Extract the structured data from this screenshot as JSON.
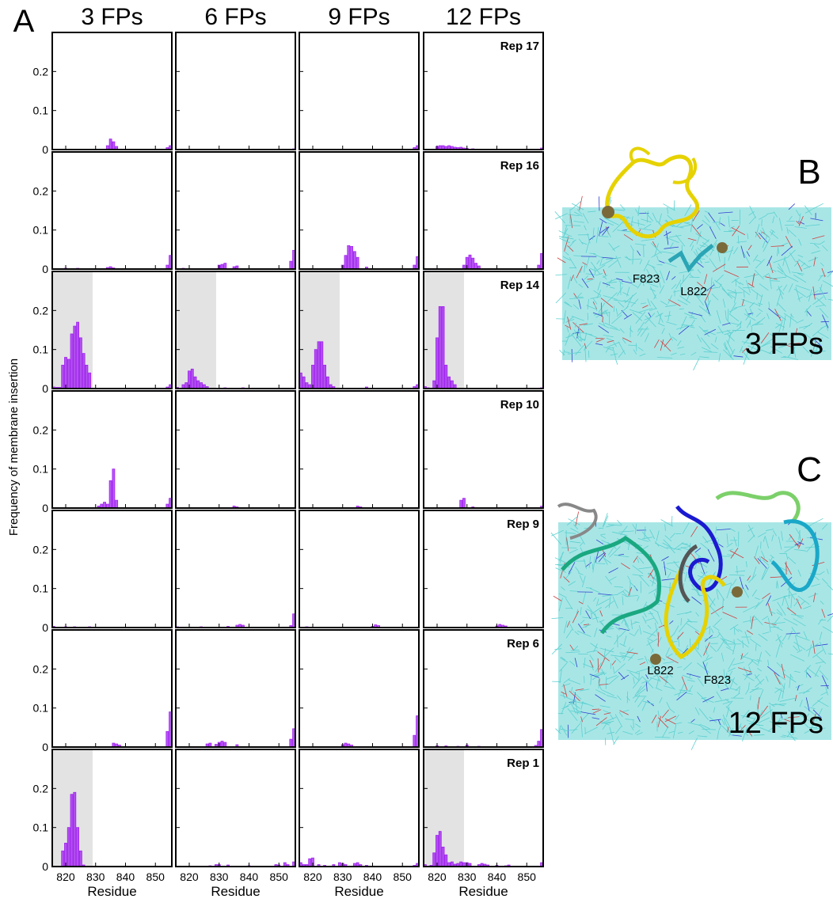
{
  "figure_label": "A",
  "y_label": "Frequency of membrane insertion",
  "chart_data": [
    {
      "type": "bar",
      "title": "3 FPs",
      "x": [
        834,
        835,
        836,
        837,
        854,
        855
      ],
      "values": [
        0.01,
        0.027,
        0.02,
        0.008,
        0.005,
        0.01
      ],
      "xlim": [
        815.5,
        855.5
      ],
      "ylim": [
        0,
        0.3
      ],
      "xticks": [
        820,
        830,
        840,
        850
      ],
      "yticks": [
        0,
        0.1,
        0.2
      ],
      "color": "#a020f0"
    },
    {
      "type": "bar",
      "title": "6 FPs",
      "x": [
        855
      ],
      "values": [
        0.002
      ],
      "xlim": [
        815.5,
        855.5
      ],
      "ylim": [
        0,
        0.3
      ],
      "xticks": [
        820,
        830,
        840,
        850
      ],
      "yticks": [
        0,
        0.1,
        0.2
      ],
      "color": "#a020f0"
    },
    {
      "type": "bar",
      "title": "9 FPs",
      "x": [
        854,
        855
      ],
      "values": [
        0.005,
        0.01
      ],
      "xlim": [
        815.5,
        855.5
      ],
      "ylim": [
        0,
        0.3
      ],
      "xticks": [
        820,
        830,
        840,
        850
      ],
      "yticks": [
        0,
        0.1,
        0.2
      ],
      "color": "#a020f0"
    },
    {
      "type": "bar",
      "title": "12 FPs",
      "annotation": "Rep 17",
      "x": [
        820,
        821,
        822,
        823,
        824,
        825,
        826,
        827,
        828,
        829,
        830,
        832,
        855
      ],
      "values": [
        0.008,
        0.01,
        0.01,
        0.008,
        0.01,
        0.008,
        0.006,
        0.005,
        0.006,
        0.004,
        0.003,
        0.002,
        0.004
      ],
      "xlim": [
        815.5,
        855.5
      ],
      "ylim": [
        0,
        0.3
      ],
      "xticks": [
        820,
        830,
        840,
        850
      ],
      "yticks": [
        0,
        0.1,
        0.2
      ],
      "color": "#a020f0"
    },
    {
      "type": "bar",
      "x": [
        820,
        824,
        834,
        835,
        836,
        854,
        855
      ],
      "values": [
        0.002,
        0.002,
        0.004,
        0.006,
        0.003,
        0.01,
        0.035
      ],
      "xlim": [
        815.5,
        855.5
      ],
      "ylim": [
        0,
        0.3
      ],
      "xticks": [
        820,
        830,
        840,
        850
      ],
      "yticks": [
        0,
        0.1,
        0.2
      ],
      "color": "#a020f0"
    },
    {
      "type": "bar",
      "x": [
        818,
        830,
        831,
        832,
        835,
        836,
        854,
        855
      ],
      "values": [
        0.002,
        0.01,
        0.012,
        0.015,
        0.006,
        0.008,
        0.02,
        0.048
      ],
      "xlim": [
        815.5,
        855.5
      ],
      "ylim": [
        0,
        0.3
      ],
      "xticks": [
        820,
        830,
        840,
        850
      ],
      "yticks": [
        0,
        0.1,
        0.2
      ],
      "color": "#a020f0"
    },
    {
      "type": "bar",
      "x": [
        830,
        831,
        832,
        833,
        834,
        835,
        838,
        854,
        855
      ],
      "values": [
        0.01,
        0.035,
        0.06,
        0.058,
        0.045,
        0.03,
        0.005,
        0.01,
        0.032
      ],
      "xlim": [
        815.5,
        855.5
      ],
      "ylim": [
        0,
        0.3
      ],
      "xticks": [
        820,
        830,
        840,
        850
      ],
      "yticks": [
        0,
        0.1,
        0.2
      ],
      "color": "#a020f0"
    },
    {
      "type": "bar",
      "annotation": "Rep 16",
      "x": [
        829,
        830,
        831,
        832,
        833,
        834,
        854,
        855
      ],
      "values": [
        0.01,
        0.03,
        0.036,
        0.028,
        0.015,
        0.008,
        0.01,
        0.04
      ],
      "xlim": [
        815.5,
        855.5
      ],
      "ylim": [
        0,
        0.3
      ],
      "xticks": [
        820,
        830,
        840,
        850
      ],
      "yticks": [
        0,
        0.1,
        0.2
      ],
      "color": "#a020f0"
    },
    {
      "type": "bar",
      "shade": [
        815.5,
        829
      ],
      "x": [
        816,
        817,
        818,
        819,
        820,
        821,
        822,
        823,
        824,
        825,
        826,
        827,
        828,
        854,
        855
      ],
      "values": [
        0.004,
        0.003,
        0.003,
        0.06,
        0.08,
        0.075,
        0.14,
        0.16,
        0.17,
        0.13,
        0.09,
        0.06,
        0.04,
        0.004,
        0.01
      ],
      "xlim": [
        815.5,
        855.5
      ],
      "ylim": [
        0,
        0.3
      ],
      "xticks": [
        820,
        830,
        840,
        850
      ],
      "yticks": [
        0,
        0.1,
        0.2
      ],
      "color": "#a020f0"
    },
    {
      "type": "bar",
      "shade": [
        815.5,
        829
      ],
      "x": [
        816,
        818,
        819,
        820,
        821,
        822,
        823,
        824,
        825,
        826,
        832,
        838
      ],
      "values": [
        0.003,
        0.01,
        0.015,
        0.045,
        0.05,
        0.03,
        0.02,
        0.015,
        0.01,
        0.005,
        0.002,
        0.002
      ],
      "xlim": [
        815.5,
        855.5
      ],
      "ylim": [
        0,
        0.3
      ],
      "xticks": [
        820,
        830,
        840,
        850
      ],
      "yticks": [
        0,
        0.1,
        0.2
      ],
      "color": "#a020f0"
    },
    {
      "type": "bar",
      "shade": [
        815.5,
        829
      ],
      "x": [
        816,
        817,
        818,
        819,
        820,
        821,
        822,
        823,
        824,
        825,
        826,
        827,
        838,
        854,
        855
      ],
      "values": [
        0.04,
        0.03,
        0.015,
        0.01,
        0.06,
        0.1,
        0.12,
        0.12,
        0.06,
        0.03,
        0.01,
        0.005,
        0.004,
        0.005,
        0.01
      ],
      "xlim": [
        815.5,
        855.5
      ],
      "ylim": [
        0,
        0.3
      ],
      "xticks": [
        820,
        830,
        840,
        850
      ],
      "yticks": [
        0,
        0.1,
        0.2
      ],
      "color": "#a020f0"
    },
    {
      "type": "bar",
      "annotation": "Rep 14",
      "shade": [
        815.5,
        829
      ],
      "x": [
        816,
        817,
        819,
        820,
        821,
        822,
        823,
        824,
        825,
        826,
        855
      ],
      "values": [
        0.005,
        0.002,
        0.02,
        0.13,
        0.21,
        0.21,
        0.06,
        0.03,
        0.02,
        0.01,
        0.002
      ],
      "xlim": [
        815.5,
        855.5
      ],
      "ylim": [
        0,
        0.3
      ],
      "xticks": [
        820,
        830,
        840,
        850
      ],
      "yticks": [
        0,
        0.1,
        0.2
      ],
      "color": "#a020f0"
    },
    {
      "type": "bar",
      "x": [
        831,
        832,
        833,
        834,
        835,
        836,
        837,
        854,
        855
      ],
      "values": [
        0.005,
        0.01,
        0.015,
        0.01,
        0.07,
        0.1,
        0.02,
        0.01,
        0.025
      ],
      "xlim": [
        815.5,
        855.5
      ],
      "ylim": [
        0,
        0.3
      ],
      "xticks": [
        820,
        830,
        840,
        850
      ],
      "yticks": [
        0,
        0.1,
        0.2
      ],
      "color": "#a020f0"
    },
    {
      "type": "bar",
      "x": [
        835,
        836
      ],
      "values": [
        0.005,
        0.003
      ],
      "xlim": [
        815.5,
        855.5
      ],
      "ylim": [
        0,
        0.3
      ],
      "xticks": [
        820,
        830,
        840,
        850
      ],
      "yticks": [
        0,
        0.1,
        0.2
      ],
      "color": "#a020f0"
    },
    {
      "type": "bar",
      "x": [
        835,
        836
      ],
      "values": [
        0.005,
        0.003
      ],
      "xlim": [
        815.5,
        855.5
      ],
      "ylim": [
        0,
        0.3
      ],
      "xticks": [
        820,
        830,
        840,
        850
      ],
      "yticks": [
        0,
        0.1,
        0.2
      ],
      "color": "#a020f0"
    },
    {
      "type": "bar",
      "annotation": "Rep 10",
      "x": [
        828,
        829,
        832,
        855
      ],
      "values": [
        0.02,
        0.025,
        0.003,
        0.005
      ],
      "xlim": [
        815.5,
        855.5
      ],
      "ylim": [
        0,
        0.3
      ],
      "xticks": [
        820,
        830,
        840,
        850
      ],
      "yticks": [
        0,
        0.1,
        0.2
      ],
      "color": "#a020f0"
    },
    {
      "type": "bar",
      "x": [
        816,
        820,
        823,
        828
      ],
      "values": [
        0.003,
        0.002,
        0.002,
        0.002
      ],
      "xlim": [
        815.5,
        855.5
      ],
      "ylim": [
        0,
        0.3
      ],
      "xticks": [
        820,
        830,
        840,
        850
      ],
      "yticks": [
        0,
        0.1,
        0.2
      ],
      "color": "#a020f0"
    },
    {
      "type": "bar",
      "x": [
        816,
        824,
        833,
        836,
        837,
        838,
        854,
        855
      ],
      "values": [
        0.002,
        0.002,
        0.003,
        0.006,
        0.008,
        0.006,
        0.005,
        0.035
      ],
      "xlim": [
        815.5,
        855.5
      ],
      "ylim": [
        0,
        0.3
      ],
      "xticks": [
        820,
        830,
        840,
        850
      ],
      "yticks": [
        0,
        0.1,
        0.2
      ],
      "color": "#a020f0"
    },
    {
      "type": "bar",
      "x": [
        818,
        840,
        841,
        842
      ],
      "values": [
        0.002,
        0.003,
        0.007,
        0.005
      ],
      "xlim": [
        815.5,
        855.5
      ],
      "ylim": [
        0,
        0.3
      ],
      "xticks": [
        820,
        830,
        840,
        850
      ],
      "yticks": [
        0,
        0.1,
        0.2
      ],
      "color": "#a020f0"
    },
    {
      "type": "bar",
      "annotation": "Rep 9",
      "x": [
        840,
        841,
        842,
        843
      ],
      "values": [
        0.004,
        0.008,
        0.006,
        0.004
      ],
      "xlim": [
        815.5,
        855.5
      ],
      "ylim": [
        0,
        0.3
      ],
      "xticks": [
        820,
        830,
        840,
        850
      ],
      "yticks": [
        0,
        0.1,
        0.2
      ],
      "color": "#a020f0"
    },
    {
      "type": "bar",
      "x": [
        836,
        837,
        838,
        854,
        855
      ],
      "values": [
        0.01,
        0.008,
        0.005,
        0.04,
        0.09
      ],
      "xlim": [
        815.5,
        855.5
      ],
      "ylim": [
        0,
        0.3
      ],
      "xticks": [
        820,
        830,
        840,
        850
      ],
      "yticks": [
        0,
        0.1,
        0.2
      ],
      "color": "#a020f0"
    },
    {
      "type": "bar",
      "x": [
        826,
        827,
        829,
        830,
        831,
        832,
        836,
        854,
        855
      ],
      "values": [
        0.008,
        0.01,
        0.007,
        0.012,
        0.015,
        0.012,
        0.006,
        0.02,
        0.047
      ],
      "xlim": [
        815.5,
        855.5
      ],
      "ylim": [
        0,
        0.3
      ],
      "xticks": [
        820,
        830,
        840,
        850
      ],
      "yticks": [
        0,
        0.1,
        0.2
      ],
      "color": "#a020f0"
    },
    {
      "type": "bar",
      "x": [
        830,
        831,
        832,
        833,
        854,
        855
      ],
      "values": [
        0.006,
        0.01,
        0.008,
        0.005,
        0.03,
        0.08
      ],
      "xlim": [
        815.5,
        855.5
      ],
      "ylim": [
        0,
        0.3
      ],
      "xticks": [
        820,
        830,
        840,
        850
      ],
      "yticks": [
        0,
        0.1,
        0.2
      ],
      "color": "#a020f0"
    },
    {
      "type": "bar",
      "annotation": "Rep 6",
      "x": [
        820,
        823,
        827,
        830,
        834,
        853,
        854,
        855
      ],
      "values": [
        0.003,
        0.003,
        0.002,
        0.005,
        0.002,
        0.004,
        0.015,
        0.045
      ],
      "xlim": [
        815.5,
        855.5
      ],
      "ylim": [
        0,
        0.3
      ],
      "xticks": [
        820,
        830,
        840,
        850
      ],
      "yticks": [
        0,
        0.1,
        0.2
      ],
      "color": "#a020f0"
    },
    {
      "type": "bar",
      "xlabel": "Residue",
      "shade": [
        815.5,
        829
      ],
      "x": [
        819,
        820,
        821,
        822,
        823,
        824,
        825,
        826
      ],
      "values": [
        0.04,
        0.06,
        0.1,
        0.185,
        0.19,
        0.1,
        0.04,
        0.004
      ],
      "xlim": [
        815.5,
        855.5
      ],
      "ylim": [
        0,
        0.3
      ],
      "xticks": [
        820,
        830,
        840,
        850
      ],
      "yticks": [
        0,
        0.1,
        0.2
      ],
      "color": "#a020f0"
    },
    {
      "type": "bar",
      "xlabel": "Residue",
      "x": [
        827,
        829,
        830,
        833,
        840,
        849,
        850,
        852,
        853,
        855
      ],
      "values": [
        0.002,
        0.005,
        0.005,
        0.004,
        0.002,
        0.005,
        0.004,
        0.01,
        0.005,
        0.012
      ],
      "xlim": [
        815.5,
        855.5
      ],
      "ylim": [
        0,
        0.3
      ],
      "xticks": [
        820,
        830,
        840,
        850
      ],
      "yticks": [
        0,
        0.1,
        0.2
      ],
      "color": "#a020f0"
    },
    {
      "type": "bar",
      "xlabel": "Residue",
      "x": [
        816,
        817,
        818,
        819,
        820,
        822,
        824,
        827,
        829,
        830,
        831,
        834,
        835,
        836,
        838,
        854,
        855
      ],
      "values": [
        0.01,
        0.005,
        0.005,
        0.02,
        0.022,
        0.005,
        0.003,
        0.005,
        0.01,
        0.008,
        0.005,
        0.008,
        0.01,
        0.005,
        0.003,
        0.003,
        0.008
      ],
      "xlim": [
        815.5,
        855.5
      ],
      "ylim": [
        0,
        0.3
      ],
      "xticks": [
        820,
        830,
        840,
        850
      ],
      "yticks": [
        0,
        0.1,
        0.2
      ],
      "color": "#a020f0"
    },
    {
      "type": "bar",
      "xlabel": "Residue",
      "annotation": "Rep 1",
      "shade": [
        815.5,
        829
      ],
      "x": [
        816,
        818,
        819,
        820,
        821,
        822,
        823,
        824,
        825,
        826,
        827,
        828,
        829,
        830,
        831,
        834,
        835,
        836,
        837,
        840,
        843,
        844,
        855
      ],
      "values": [
        0.005,
        0.003,
        0.035,
        0.08,
        0.09,
        0.05,
        0.03,
        0.01,
        0.012,
        0.006,
        0.008,
        0.012,
        0.01,
        0.01,
        0.008,
        0.005,
        0.008,
        0.006,
        0.004,
        0.003,
        0.002,
        0.004,
        0.01
      ],
      "xlim": [
        815.5,
        855.5
      ],
      "ylim": [
        0,
        0.3
      ],
      "xticks": [
        820,
        830,
        840,
        850
      ],
      "yticks": [
        0,
        0.1,
        0.2
      ],
      "color": "#a020f0"
    }
  ],
  "images": [
    {
      "label": "B",
      "caption": "3 FPs",
      "residues": [
        "F823",
        "L822"
      ]
    },
    {
      "label": "C",
      "caption": "12 FPs",
      "residues": [
        "L822",
        "F823"
      ]
    }
  ]
}
